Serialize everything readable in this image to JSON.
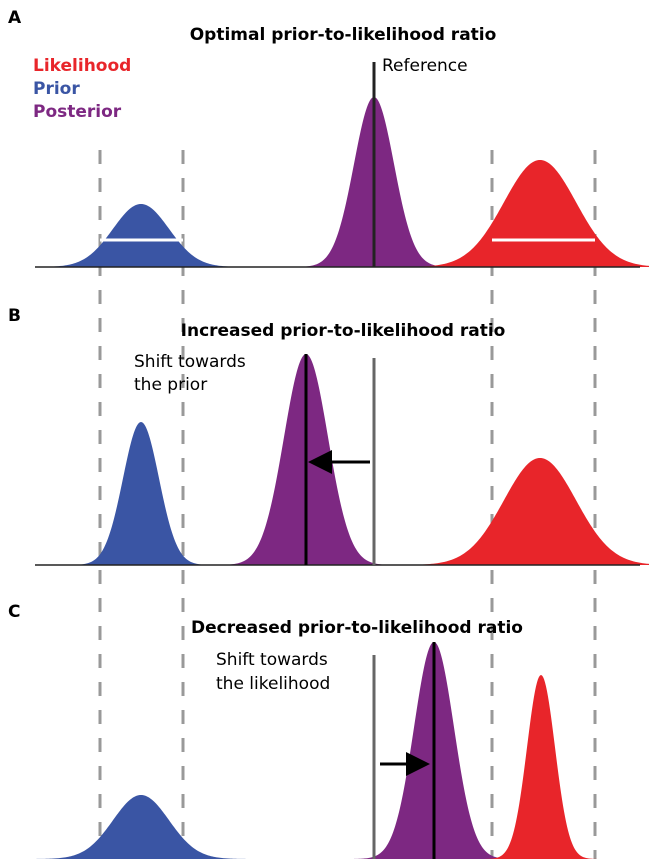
{
  "panels": [
    {
      "label": "A",
      "title": "Optimal prior-to-likelihood ratio"
    },
    {
      "label": "B",
      "title": "Increased prior-to-likelihood ratio",
      "annotation": [
        "Shift towards",
        "the prior"
      ]
    },
    {
      "label": "C",
      "title": "Decreased prior-to-likelihood ratio",
      "annotation": [
        "Shift towards",
        "the likelihood"
      ]
    }
  ],
  "legend": {
    "likelihood": "Likelihood",
    "prior": "Prior",
    "posterior": "Posterior"
  },
  "reference_label": "Reference"
}
